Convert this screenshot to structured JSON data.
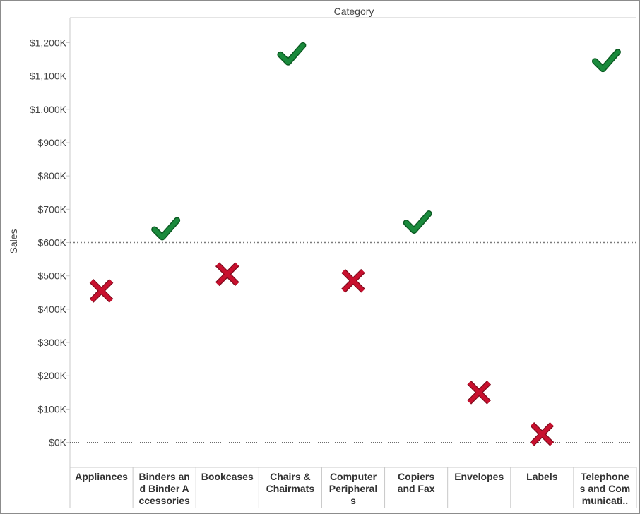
{
  "chart_data": {
    "type": "scatter",
    "title": "",
    "column_header": "Category",
    "xlabel": "",
    "ylabel": "Sales",
    "ylim": [
      -75,
      1275
    ],
    "y_ticks": [
      0,
      100,
      200,
      300,
      400,
      500,
      600,
      700,
      800,
      900,
      1000,
      1100,
      1200
    ],
    "y_tick_labels": [
      "$0K",
      "$100K",
      "$200K",
      "$300K",
      "$400K",
      "$500K",
      "$600K",
      "$700K",
      "$800K",
      "$900K",
      "$1,000K",
      "$1,100K",
      "$1,200K"
    ],
    "reference_lines": [
      {
        "value": 600,
        "style": "dotted"
      },
      {
        "value": 0,
        "style": "dotted"
      }
    ],
    "categories": [
      "Appliances",
      "Binders and Binder Accessories",
      "Bookcases",
      "Chairs & Chairmats",
      "Computer Peripherals",
      "Copiers and Fax",
      "Envelopes",
      "Labels",
      "Telephones and Communication"
    ],
    "category_labels": [
      [
        "Appliances"
      ],
      [
        "Binders an",
        "d Binder A",
        "ccessories"
      ],
      [
        "Bookcases"
      ],
      [
        "Chairs &",
        "Chairmats"
      ],
      [
        "Computer",
        "Peripheral",
        "s"
      ],
      [
        "Copiers",
        "and Fax"
      ],
      [
        "Envelopes"
      ],
      [
        "Labels"
      ],
      [
        "Telephone",
        "s and Com",
        "municati.."
      ]
    ],
    "values": [
      455,
      635,
      505,
      1160,
      485,
      655,
      150,
      25,
      1140
    ],
    "marks": [
      "cross",
      "check",
      "cross",
      "check",
      "cross",
      "check",
      "cross",
      "cross",
      "check"
    ],
    "grid": false,
    "colors": {
      "check": "#1a8a3c",
      "cross": "#c8102e",
      "text": "#333333",
      "axis": "#c8c8c8"
    }
  }
}
